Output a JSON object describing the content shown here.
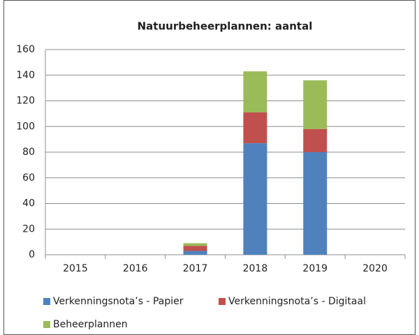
{
  "chart_data": {
    "type": "stacked_bar",
    "title": "Natuurbeheerplannen: aantal",
    "categories": [
      "2015",
      "2016",
      "2017",
      "2018",
      "2019",
      "2020"
    ],
    "series": [
      {
        "name": "Verkenningsnota’s - Papier",
        "color": "#4f81bd",
        "values": [
          0,
          0,
          3,
          87,
          80,
          0
        ]
      },
      {
        "name": "Verkenningsnota’s - Digitaal",
        "color": "#c0504d",
        "values": [
          0,
          0,
          4,
          24,
          18,
          0
        ]
      },
      {
        "name": "Beheerplannen",
        "color": "#9bbb59",
        "values": [
          0,
          0,
          2,
          32,
          38,
          0
        ]
      }
    ],
    "ylim": [
      0,
      160
    ],
    "yticks": [
      0,
      20,
      40,
      60,
      80,
      100,
      120,
      140,
      160
    ],
    "grid": true
  }
}
